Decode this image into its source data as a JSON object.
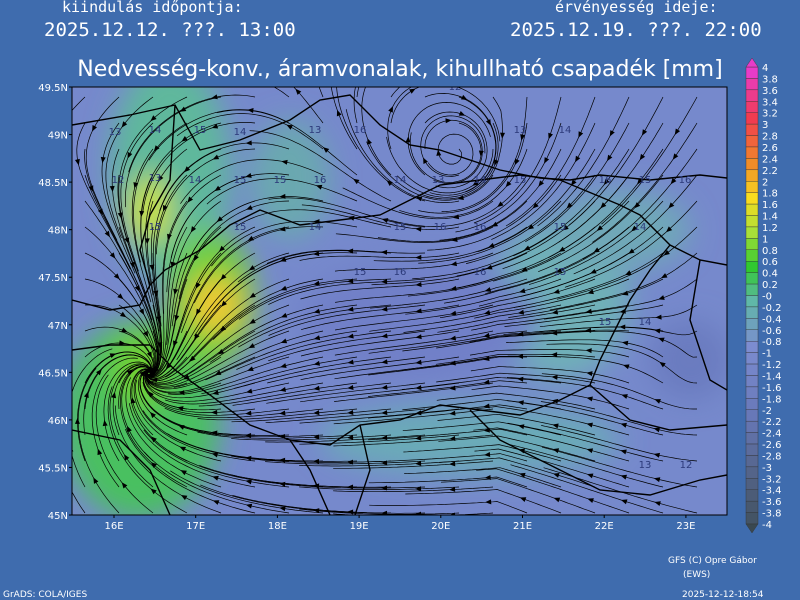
{
  "header": {
    "init_label": "kiindulás időpontja:",
    "init_time": "2025.12.12. ???. 13:00",
    "valid_label": "érvényesség ideje:",
    "valid_time": "2025.12.19. ???. 22:00",
    "title": "Nedvesség-konv., áramvonalak, kihullható csapadék [mm]"
  },
  "map": {
    "lat_labels": [
      "49.5N",
      "49N",
      "48.5N",
      "48N",
      "47.5N",
      "47N",
      "46.5N",
      "46N",
      "45.5N",
      "45N"
    ],
    "lon_labels": [
      "16E",
      "17E",
      "18E",
      "19E",
      "20E",
      "21E",
      "22E",
      "23E"
    ],
    "contour_labels": [
      "13",
      "14",
      "15",
      "14",
      "13",
      "16",
      "12",
      "13",
      "14",
      "12",
      "13",
      "14",
      "15",
      "15",
      "16",
      "14",
      "13",
      "14",
      "15",
      "16",
      "15",
      "16",
      "15",
      "15",
      "14",
      "15",
      "16",
      "16",
      "15",
      "14",
      "15",
      "16",
      "16",
      "15",
      "15",
      "14",
      "13",
      "12"
    ]
  },
  "colorbar": {
    "labels": [
      "4",
      "3.8",
      "3.6",
      "3.4",
      "3.2",
      "3",
      "2.8",
      "2.6",
      "2.4",
      "2.2",
      "2",
      "1.8",
      "1.6",
      "1.4",
      "1.2",
      "1",
      "0.8",
      "0.6",
      "0.4",
      "0.2",
      "-0",
      "-0.2",
      "-0.4",
      "-0.6",
      "-0.8",
      "-1",
      "-1.2",
      "-1.4",
      "-1.6",
      "-1.8",
      "-2",
      "-2.2",
      "-2.4",
      "-2.6",
      "-2.8",
      "-3",
      "-3.2",
      "-3.4",
      "-3.6",
      "-3.8",
      "-4"
    ]
  },
  "footer": {
    "credit": "GFS (C) Opre Gábor",
    "credit2": "(EWS)",
    "grads": "GrADS: COLA/IGES",
    "stamp": "2025-12-12-18:54"
  }
}
